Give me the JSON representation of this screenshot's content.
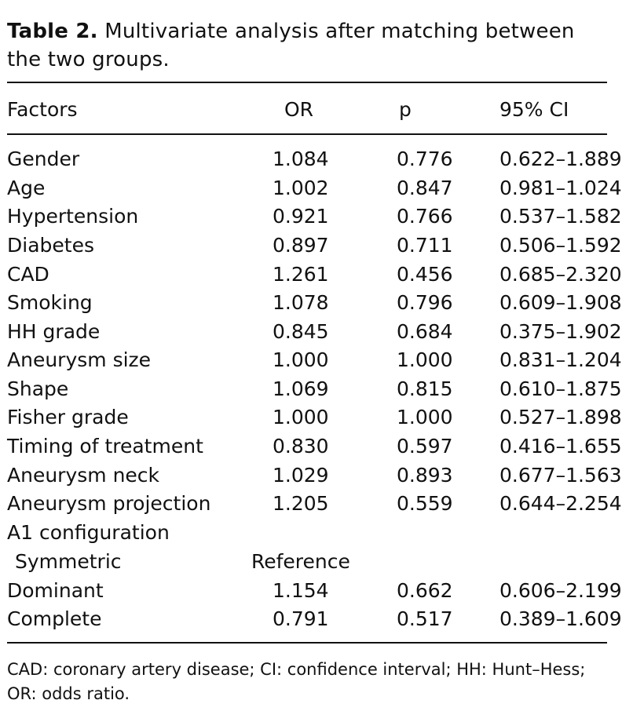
{
  "caption": {
    "label": "Table 2.",
    "text": "Multivariate analysis after matching between the two groups."
  },
  "table": {
    "columns": [
      "Factors",
      "OR",
      "p",
      "95% CI"
    ],
    "rows": [
      {
        "factor": "Gender",
        "or": "1.084",
        "p": "0.776",
        "ci": "0.622–1.889"
      },
      {
        "factor": "Age",
        "or": "1.002",
        "p": "0.847",
        "ci": "0.981–1.024"
      },
      {
        "factor": "Hypertension",
        "or": "0.921",
        "p": "0.766",
        "ci": "0.537–1.582"
      },
      {
        "factor": "Diabetes",
        "or": "0.897",
        "p": "0.711",
        "ci": "0.506–1.592"
      },
      {
        "factor": "CAD",
        "or": "1.261",
        "p": "0.456",
        "ci": "0.685–2.320"
      },
      {
        "factor": "Smoking",
        "or": "1.078",
        "p": "0.796",
        "ci": "0.609–1.908"
      },
      {
        "factor": "HH grade",
        "or": "0.845",
        "p": "0.684",
        "ci": "0.375–1.902"
      },
      {
        "factor": "Aneurysm size",
        "or": "1.000",
        "p": "1.000",
        "ci": "0.831–1.204"
      },
      {
        "factor": "Shape",
        "or": "1.069",
        "p": "0.815",
        "ci": "0.610–1.875"
      },
      {
        "factor": "Fisher grade",
        "or": "1.000",
        "p": "1.000",
        "ci": "0.527–1.898"
      },
      {
        "factor": "Timing of treatment",
        "or": "0.830",
        "p": "0.597",
        "ci": "0.416–1.655"
      },
      {
        "factor": "Aneurysm neck",
        "or": "1.029",
        "p": "0.893",
        "ci": "0.677–1.563"
      },
      {
        "factor": "Aneurysm projection",
        "or": "1.205",
        "p": "0.559",
        "ci": "0.644–2.254"
      },
      {
        "factor": "A1 configuration",
        "or": "",
        "p": "",
        "ci": ""
      },
      {
        "factor": "Symmetric",
        "or": "Reference",
        "p": "",
        "ci": ""
      },
      {
        "factor": "Dominant",
        "or": "1.154",
        "p": "0.662",
        "ci": "0.606–2.199"
      },
      {
        "factor": "Complete",
        "or": "0.791",
        "p": "0.517",
        "ci": "0.389–1.609"
      }
    ]
  },
  "footnote": "CAD: coronary artery disease; CI: confidence interval; HH: Hunt–Hess; OR: odds ratio."
}
